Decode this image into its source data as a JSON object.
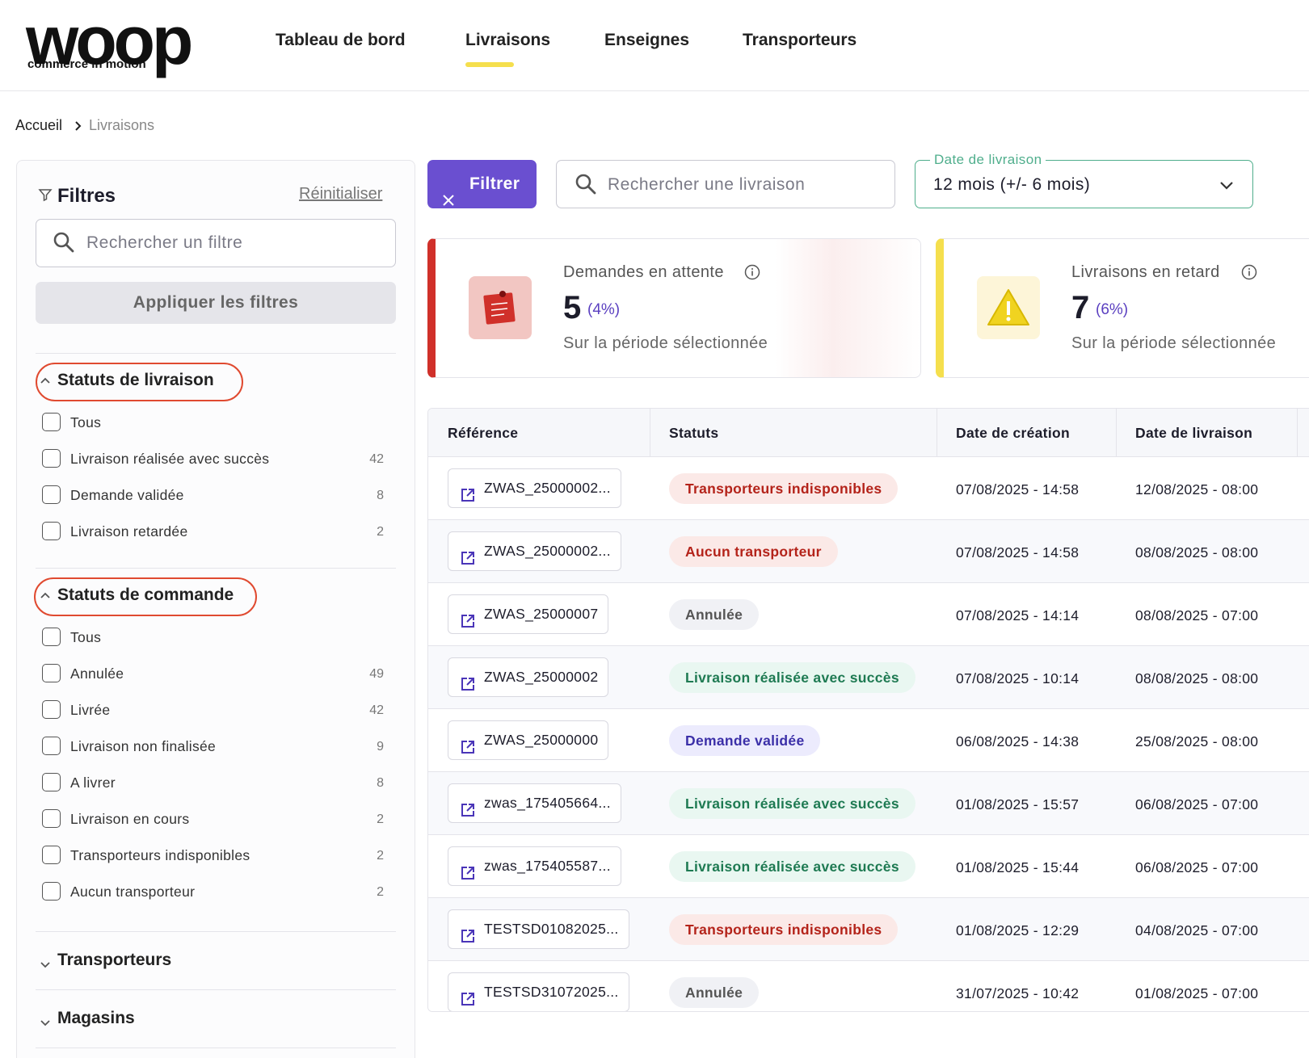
{
  "header": {
    "logo": "woop",
    "tagline": "commerce in motion",
    "nav": [
      "Tableau de bord",
      "Livraisons",
      "Enseignes",
      "Transporteurs"
    ],
    "active_nav": 1
  },
  "breadcrumb": [
    "Accueil",
    "Livraisons"
  ],
  "filters": {
    "title": "Filtres",
    "reset": "Réinitialiser",
    "search_placeholder": "Rechercher un filtre",
    "apply": "Appliquer les filtres",
    "groups": [
      {
        "title": "Statuts de livraison",
        "options": [
          {
            "label": "Tous"
          },
          {
            "label": "Livraison réalisée avec succès",
            "count": 42
          },
          {
            "label": "Demande validée",
            "count": 8
          },
          {
            "label": "Livraison retardée",
            "count": 2
          }
        ]
      },
      {
        "title": "Statuts de commande",
        "options": [
          {
            "label": "Tous"
          },
          {
            "label": "Annulée",
            "count": 49
          },
          {
            "label": "Livrée",
            "count": 42
          },
          {
            "label": "Livraison non finalisée",
            "count": 9
          },
          {
            "label": "A livrer",
            "count": 8
          },
          {
            "label": "Livraison en cours",
            "count": 2
          },
          {
            "label": "Transporteurs indisponibles",
            "count": 2
          },
          {
            "label": "Aucun transporteur",
            "count": 2
          }
        ]
      }
    ],
    "collapsed": [
      "Transporteurs",
      "Magasins"
    ]
  },
  "toolbar": {
    "filter_button": "Filtrer",
    "search_placeholder": "Rechercher une livraison",
    "date_label": "Date de livraison",
    "date_value": "12 mois (+/- 6 mois)"
  },
  "cards": [
    {
      "title": "Demandes en attente",
      "value": 5,
      "percent": "(4%)",
      "caption": "Sur la période sélectionnée",
      "color": "#d0302a"
    },
    {
      "title": "Livraisons en retard",
      "value": 7,
      "percent": "(6%)",
      "caption": "Sur la période sélectionnée",
      "color": "#f5df4d"
    }
  ],
  "table": {
    "columns": [
      "Référence",
      "Statuts",
      "Date de création",
      "Date de livraison"
    ],
    "rows": [
      {
        "reference": "ZWAS_25000002...",
        "status": "Transporteurs indisponibles",
        "tone": "danger",
        "created": "07/08/2025 - 14:58",
        "delivery": "12/08/2025 - 08:00"
      },
      {
        "reference": "ZWAS_25000002...",
        "status": "Aucun transporteur",
        "tone": "danger",
        "created": "07/08/2025 - 14:58",
        "delivery": "08/08/2025 - 08:00"
      },
      {
        "reference": "ZWAS_25000007",
        "status": "Annulée",
        "tone": "neutral",
        "created": "07/08/2025 - 14:14",
        "delivery": "08/08/2025 - 07:00"
      },
      {
        "reference": "ZWAS_25000002",
        "status": "Livraison réalisée avec succès",
        "tone": "success",
        "created": "07/08/2025 - 10:14",
        "delivery": "08/08/2025 - 08:00"
      },
      {
        "reference": "ZWAS_25000000",
        "status": "Demande validée",
        "tone": "info",
        "created": "06/08/2025 - 14:38",
        "delivery": "25/08/2025 - 08:00"
      },
      {
        "reference": "zwas_175405664...",
        "status": "Livraison réalisée avec succès",
        "tone": "success",
        "created": "01/08/2025 - 15:57",
        "delivery": "06/08/2025 - 07:00"
      },
      {
        "reference": "zwas_175405587...",
        "status": "Livraison réalisée avec succès",
        "tone": "success",
        "created": "01/08/2025 - 15:44",
        "delivery": "06/08/2025 - 07:00"
      },
      {
        "reference": "TESTSD01082025...",
        "status": "Transporteurs indisponibles",
        "tone": "danger",
        "created": "01/08/2025 - 12:29",
        "delivery": "04/08/2025 - 07:00"
      },
      {
        "reference": "TESTSD31072025...",
        "status": "Annulée",
        "tone": "neutral",
        "created": "31/07/2025 - 10:42",
        "delivery": "01/08/2025 - 07:00"
      }
    ]
  }
}
